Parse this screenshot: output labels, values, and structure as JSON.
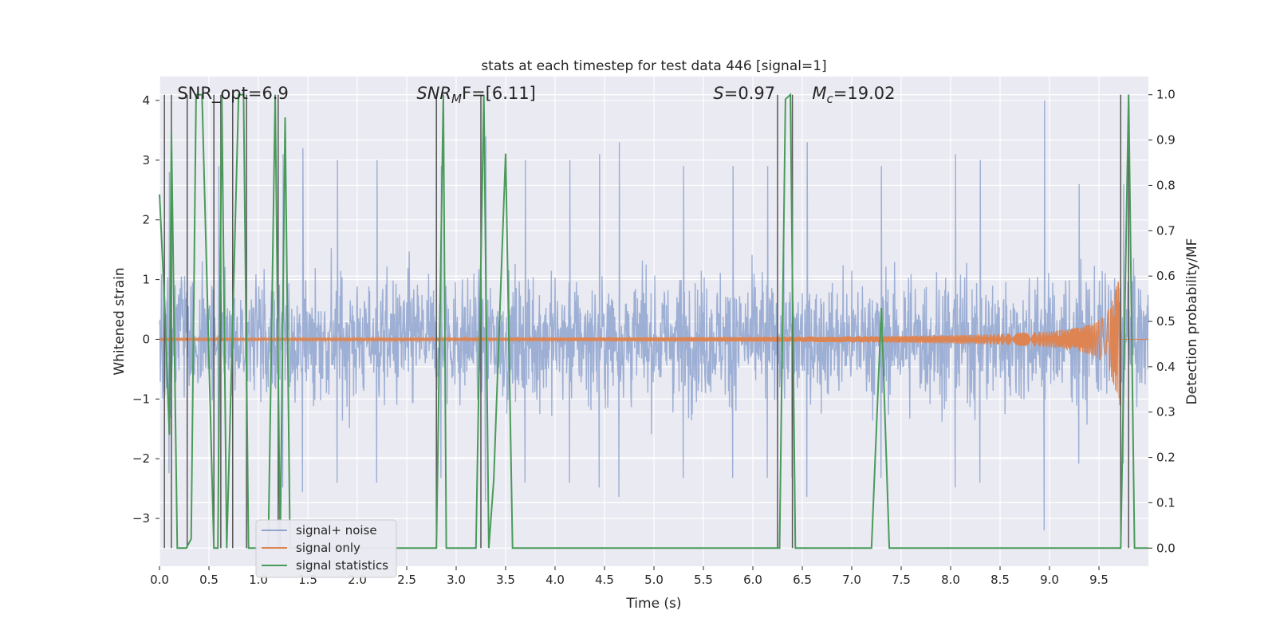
{
  "chart_data": {
    "type": "line",
    "title": "stats at each timestep for test data 446 [signal=1]",
    "xlabel": "Time (s)",
    "ylabel": "Whitened strain",
    "ylabel_right": "Detection probability/MF",
    "xlim": [
      0.0,
      10.0
    ],
    "ylim": [
      -3.8,
      4.4
    ],
    "ylim_right": [
      -0.04,
      1.04
    ],
    "x_ticks": [
      "0.0",
      "0.5",
      "1.0",
      "1.5",
      "2.0",
      "2.5",
      "3.0",
      "3.5",
      "4.0",
      "4.5",
      "5.0",
      "5.5",
      "6.0",
      "6.5",
      "7.0",
      "7.5",
      "8.0",
      "8.5",
      "9.0",
      "9.5"
    ],
    "x_tick_values": [
      0.0,
      0.5,
      1.0,
      1.5,
      2.0,
      2.5,
      3.0,
      3.5,
      4.0,
      4.5,
      5.0,
      5.5,
      6.0,
      6.5,
      7.0,
      7.5,
      8.0,
      8.5,
      9.0,
      9.5
    ],
    "y_ticks": [
      "−3",
      "−2",
      "−1",
      "0",
      "1",
      "2",
      "3",
      "4"
    ],
    "y_tick_values": [
      -3,
      -2,
      -1,
      0,
      1,
      2,
      3,
      4
    ],
    "y_right_ticks": [
      "0.0",
      "0.1",
      "0.2",
      "0.3",
      "0.4",
      "0.5",
      "0.6",
      "0.7",
      "0.8",
      "0.9",
      "1.0"
    ],
    "y_right_tick_values": [
      0.0,
      0.1,
      0.2,
      0.3,
      0.4,
      0.5,
      0.6,
      0.7,
      0.8,
      0.9,
      1.0
    ],
    "grid": true,
    "legend_position": "lower-left",
    "annotations": [
      {
        "label": "SNR_opt=6.9",
        "x": 0.18
      },
      {
        "label": "SNRₘF=[6.11]",
        "x": 2.6,
        "italic_part": "SNR",
        "sub": "M",
        "rest": "F=[6.11]"
      },
      {
        "label": "S=0.97",
        "x": 5.6,
        "italic_part": "S",
        "sub": "",
        "rest": "=0.97"
      },
      {
        "label": "Mc=19.02",
        "x": 6.6,
        "italic_part": "M",
        "sub": "c",
        "rest": "=19.02"
      }
    ],
    "series": [
      {
        "name": "signal+ noise",
        "color": "#8fa5cf",
        "kind": "noise",
        "envelope_typical": 1.2,
        "peak_times": [
          0.1,
          0.6,
          1.25,
          1.45,
          1.8,
          2.2,
          2.85,
          3.3,
          3.7,
          4.15,
          4.45,
          4.65,
          5.3,
          5.8,
          6.15,
          6.4,
          6.55,
          7.3,
          8.05,
          8.3,
          8.95,
          9.3,
          9.75
        ],
        "peak_values": [
          2.8,
          2.9,
          3.1,
          3.2,
          3.0,
          3.0,
          2.9,
          3.4,
          3.0,
          3.0,
          3.1,
          3.3,
          2.9,
          2.9,
          2.9,
          2.9,
          3.3,
          2.9,
          3.1,
          3.0,
          4.0,
          2.6,
          2.6
        ]
      },
      {
        "name": "signal only",
        "color": "#dd8452",
        "kind": "chirp",
        "t_merge": 9.72,
        "amp_at_6": 0.04,
        "amp_peak": 1.1
      },
      {
        "name": "signal statistics",
        "color": "#4a9a5a",
        "kind": "probability",
        "x": [
          0.0,
          0.05,
          0.1,
          0.12,
          0.18,
          0.27,
          0.32,
          0.37,
          0.43,
          0.49,
          0.55,
          0.59,
          0.63,
          0.68,
          0.74,
          0.8,
          0.85,
          0.9,
          0.98,
          1.03,
          1.1,
          1.17,
          1.22,
          1.27,
          1.32,
          1.4,
          2.7,
          2.8,
          2.87,
          2.9,
          2.95,
          3.1,
          3.2,
          3.28,
          3.33,
          3.38,
          3.5,
          3.57,
          3.62,
          4.5,
          5.5,
          6.2,
          6.27,
          6.33,
          6.38,
          6.43,
          6.5,
          7.2,
          7.3,
          7.38,
          7.45,
          8.5,
          9.5,
          9.72,
          9.8,
          9.86,
          9.92,
          9.95,
          10.0
        ],
        "y": [
          0.78,
          0.55,
          0.25,
          0.92,
          0.0,
          0.0,
          0.02,
          1.0,
          1.0,
          0.5,
          0.0,
          0.0,
          1.0,
          0.0,
          0.5,
          1.0,
          1.0,
          0.0,
          0.0,
          0.0,
          0.0,
          1.0,
          0.0,
          0.95,
          0.0,
          0.0,
          0.0,
          0.0,
          1.0,
          0.0,
          0.0,
          0.0,
          0.0,
          1.0,
          0.0,
          0.15,
          0.87,
          0.0,
          0.0,
          0.0,
          0.0,
          0.0,
          0.0,
          0.99,
          1.0,
          0.0,
          0.0,
          0.0,
          0.53,
          0.0,
          0.0,
          0.0,
          0.0,
          0.0,
          1.0,
          0.0,
          0.0,
          0.0,
          0.0
        ]
      }
    ],
    "vertical_lines_x": [
      0.05,
      0.12,
      0.28,
      0.55,
      0.62,
      0.74,
      0.88,
      1.2,
      2.8,
      3.25,
      6.25,
      6.4,
      9.72,
      9.8
    ]
  }
}
